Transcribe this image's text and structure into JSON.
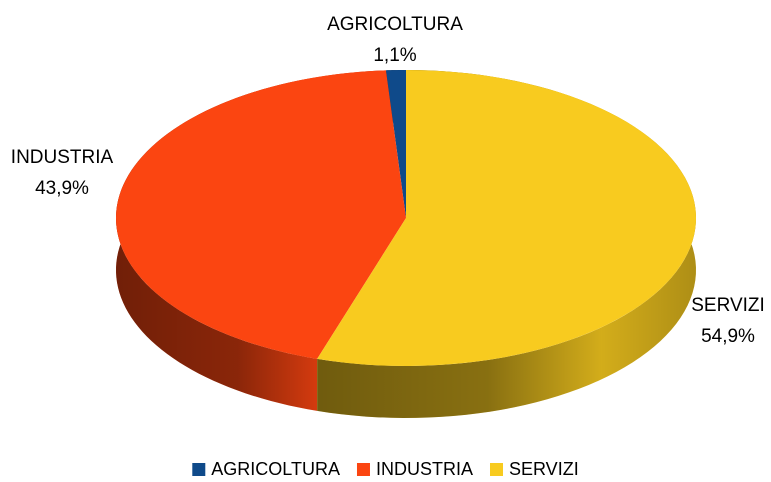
{
  "chart_data": {
    "type": "pie",
    "categories": [
      "AGRICOLTURA",
      "INDUSTRIA",
      "SERVIZI"
    ],
    "values": [
      1.1,
      43.9,
      54.9
    ],
    "value_labels": [
      "1,1%",
      "43,9%",
      "54,9%"
    ],
    "colors": [
      "#0f4a8a",
      "#fb4511",
      "#f8cb1f"
    ],
    "legend": "bottom"
  }
}
